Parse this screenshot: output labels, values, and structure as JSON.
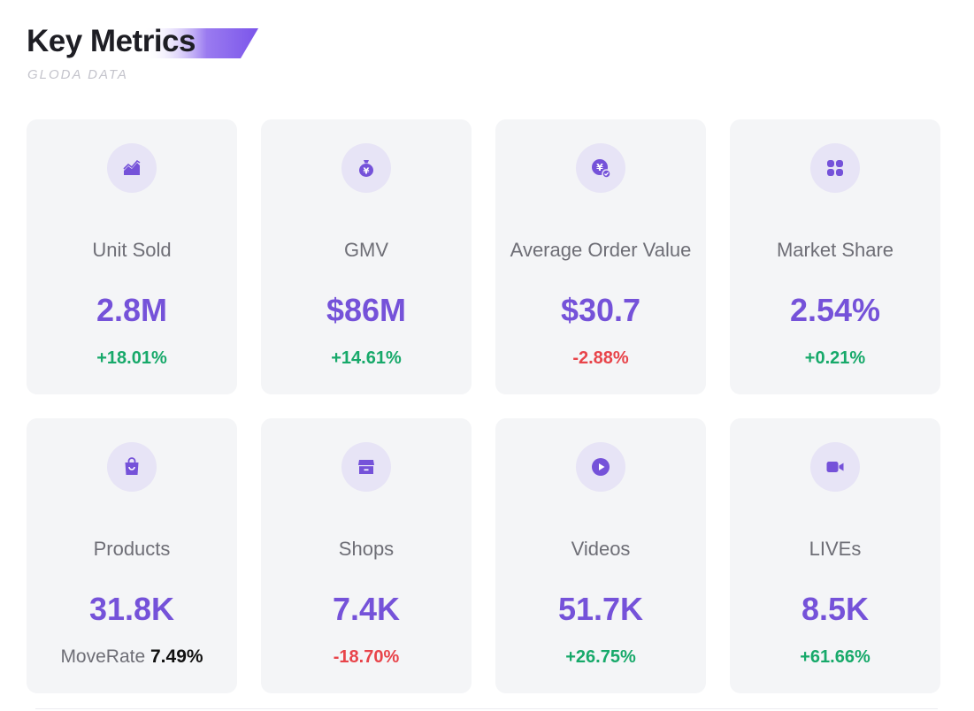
{
  "header": {
    "title": "Key Metrics",
    "subtitle": "GLODA DATA"
  },
  "colors": {
    "accent": "#7552d9",
    "positive": "#17a96a",
    "negative": "#e8444a",
    "card_bg": "#f4f5f7",
    "icon_bg": "#e7e4f6"
  },
  "metrics": [
    {
      "label": "Unit Sold",
      "value": "2.8M",
      "change": "+18.01%",
      "trend": "up",
      "icon": "chart-icon"
    },
    {
      "label": "GMV",
      "value": "$86M",
      "change": "+14.61%",
      "trend": "up",
      "icon": "money-bag-icon"
    },
    {
      "label": "Average Order Value",
      "value": "$30.7",
      "change": "-2.88%",
      "trend": "down",
      "icon": "yen-coin-icon"
    },
    {
      "label": "Market Share",
      "value": "2.54%",
      "change": "+0.21%",
      "trend": "up",
      "icon": "grid-icon"
    },
    {
      "label": "Products",
      "value": "31.8K",
      "moverate_label": "MoveRate",
      "moverate_value": "7.49%",
      "icon": "shopping-bag-icon"
    },
    {
      "label": "Shops",
      "value": "7.4K",
      "change": "-18.70%",
      "trend": "down",
      "icon": "store-icon"
    },
    {
      "label": "Videos",
      "value": "51.7K",
      "change": "+26.75%",
      "trend": "up",
      "icon": "play-icon"
    },
    {
      "label": "LIVEs",
      "value": "8.5K",
      "change": "+61.66%",
      "trend": "up",
      "icon": "video-camera-icon"
    }
  ]
}
